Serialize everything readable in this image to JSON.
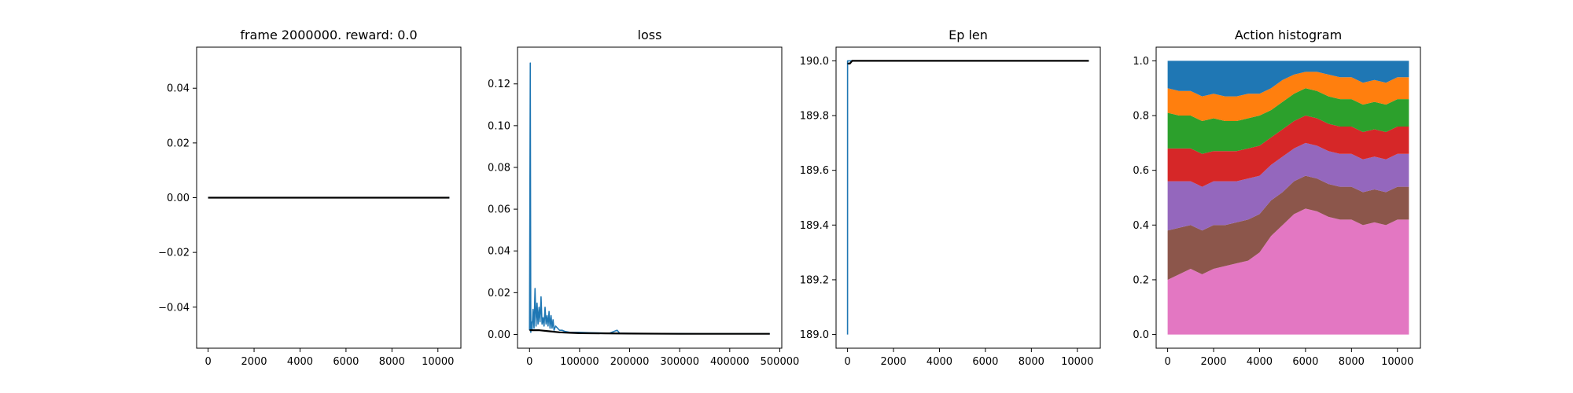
{
  "figure": {
    "background": "#ffffff"
  },
  "colors": {
    "blue": "#1f77b4",
    "orange": "#ff7f0e",
    "green": "#2ca02c",
    "red": "#d62728",
    "purple": "#9467bd",
    "brown": "#8c564b",
    "pink": "#e377c2",
    "black": "#000000"
  },
  "chart_data": [
    {
      "type": "line",
      "title": "frame 2000000. reward: 0.0",
      "xlim": [
        -500,
        11000
      ],
      "ylim": [
        -0.055,
        0.055
      ],
      "xticks": [
        0,
        2000,
        4000,
        6000,
        8000,
        10000
      ],
      "xtick_labels": [
        "0",
        "2000",
        "4000",
        "6000",
        "8000",
        "10000"
      ],
      "yticks": [
        -0.04,
        -0.02,
        0.0,
        0.02,
        0.04
      ],
      "ytick_labels": [
        "−0.04",
        "−0.02",
        "0.00",
        "0.02",
        "0.04"
      ],
      "series": [
        {
          "color": "#1f77b4",
          "x": [
            0,
            10500
          ],
          "y": [
            0,
            0
          ]
        },
        {
          "color": "#000000",
          "x": [
            0,
            10500
          ],
          "y": [
            0,
            0
          ]
        }
      ]
    },
    {
      "type": "line",
      "title": "loss",
      "xlim": [
        -24000,
        504000
      ],
      "ylim": [
        -0.0066,
        0.1376
      ],
      "xticks": [
        0,
        100000,
        200000,
        300000,
        400000,
        500000
      ],
      "xtick_labels": [
        "0",
        "100000",
        "200000",
        "300000",
        "400000",
        "500000"
      ],
      "yticks": [
        0.0,
        0.02,
        0.04,
        0.06,
        0.08,
        0.1,
        0.12
      ],
      "ytick_labels": [
        "0.00",
        "0.02",
        "0.04",
        "0.06",
        "0.08",
        "0.10",
        "0.12"
      ],
      "series": [
        {
          "color": "#1f77b4",
          "x": [
            0,
            1500,
            2500,
            3500,
            5000,
            7000,
            9000,
            11000,
            13000,
            15000,
            17000,
            19000,
            21000,
            23000,
            25000,
            27000,
            29000,
            31000,
            33000,
            35000,
            37000,
            39000,
            41000,
            43000,
            45000,
            47000,
            49000,
            52000,
            56000,
            60000,
            65000,
            70000,
            80000,
            90000,
            100000,
            120000,
            140000,
            160000,
            175000,
            180000,
            200000,
            250000,
            300000,
            350000,
            400000,
            450000,
            480000
          ],
          "y": [
            0.002,
            0.13,
            0.001,
            0.006,
            0.002,
            0.012,
            0.003,
            0.022,
            0.004,
            0.015,
            0.005,
            0.013,
            0.006,
            0.018,
            0.005,
            0.008,
            0.004,
            0.013,
            0.005,
            0.009,
            0.004,
            0.011,
            0.003,
            0.009,
            0.003,
            0.007,
            0.002,
            0.004,
            0.003,
            0.002,
            0.002,
            0.0015,
            0.001,
            0.001,
            0.001,
            0.0008,
            0.0007,
            0.0006,
            0.002,
            0.0006,
            0.0005,
            0.0004,
            0.0004,
            0.0003,
            0.0003,
            0.0003,
            0.0003
          ]
        },
        {
          "color": "#000000",
          "x": [
            0,
            20000,
            40000,
            60000,
            80000,
            100000,
            150000,
            200000,
            300000,
            400000,
            480000
          ],
          "y": [
            0.002,
            0.002,
            0.0015,
            0.001,
            0.0008,
            0.0006,
            0.0005,
            0.0004,
            0.0003,
            0.0003,
            0.0003
          ]
        }
      ]
    },
    {
      "type": "line",
      "title": "Ep len",
      "xlim": [
        -500,
        11000
      ],
      "ylim": [
        188.95,
        190.05
      ],
      "xticks": [
        0,
        2000,
        4000,
        6000,
        8000,
        10000
      ],
      "xtick_labels": [
        "0",
        "2000",
        "4000",
        "6000",
        "8000",
        "10000"
      ],
      "yticks": [
        189.0,
        189.2,
        189.4,
        189.6,
        189.8,
        190.0
      ],
      "ytick_labels": [
        "189.0",
        "189.2",
        "189.4",
        "189.6",
        "189.8",
        "190.0"
      ],
      "series": [
        {
          "color": "#1f77b4",
          "x": [
            0,
            1,
            2,
            10500
          ],
          "y": [
            189.0,
            190.0,
            190.0,
            190.0
          ]
        },
        {
          "color": "#000000",
          "x": [
            0,
            100,
            200,
            10500
          ],
          "y": [
            189.99,
            189.99,
            190.0,
            190.0
          ]
        }
      ]
    },
    {
      "type": "area",
      "title": "Action histogram",
      "xlim": [
        -500,
        11000
      ],
      "ylim": [
        -0.05,
        1.05
      ],
      "xticks": [
        0,
        2000,
        4000,
        6000,
        8000,
        10000
      ],
      "xtick_labels": [
        "0",
        "2000",
        "4000",
        "6000",
        "8000",
        "10000"
      ],
      "yticks": [
        0.0,
        0.2,
        0.4,
        0.6,
        0.8,
        1.0
      ],
      "ytick_labels": [
        "0.0",
        "0.2",
        "0.4",
        "0.6",
        "0.8",
        "1.0"
      ],
      "x": [
        0,
        500,
        1000,
        1500,
        2000,
        2500,
        3000,
        3500,
        4000,
        4500,
        5000,
        5500,
        6000,
        6500,
        7000,
        7500,
        8000,
        8500,
        9000,
        9500,
        10000,
        10500
      ],
      "series": [
        {
          "color": "#e377c2",
          "values": [
            0.2,
            0.22,
            0.24,
            0.22,
            0.24,
            0.25,
            0.26,
            0.27,
            0.3,
            0.36,
            0.4,
            0.44,
            0.46,
            0.45,
            0.43,
            0.42,
            0.42,
            0.4,
            0.41,
            0.4,
            0.42,
            0.42
          ]
        },
        {
          "color": "#8c564b",
          "values": [
            0.18,
            0.17,
            0.16,
            0.16,
            0.16,
            0.15,
            0.15,
            0.15,
            0.14,
            0.13,
            0.12,
            0.12,
            0.12,
            0.12,
            0.12,
            0.12,
            0.12,
            0.12,
            0.12,
            0.12,
            0.12,
            0.12
          ]
        },
        {
          "color": "#9467bd",
          "values": [
            0.18,
            0.17,
            0.16,
            0.16,
            0.16,
            0.16,
            0.15,
            0.15,
            0.14,
            0.13,
            0.13,
            0.12,
            0.12,
            0.12,
            0.12,
            0.12,
            0.12,
            0.12,
            0.12,
            0.12,
            0.12,
            0.12
          ]
        },
        {
          "color": "#d62728",
          "values": [
            0.12,
            0.12,
            0.12,
            0.12,
            0.11,
            0.11,
            0.11,
            0.11,
            0.11,
            0.1,
            0.1,
            0.1,
            0.1,
            0.1,
            0.1,
            0.1,
            0.1,
            0.1,
            0.1,
            0.1,
            0.1,
            0.1
          ]
        },
        {
          "color": "#2ca02c",
          "values": [
            0.13,
            0.12,
            0.12,
            0.12,
            0.12,
            0.11,
            0.11,
            0.11,
            0.11,
            0.1,
            0.1,
            0.1,
            0.1,
            0.1,
            0.1,
            0.1,
            0.1,
            0.1,
            0.1,
            0.1,
            0.1,
            0.1
          ]
        },
        {
          "color": "#ff7f0e",
          "values": [
            0.09,
            0.09,
            0.09,
            0.09,
            0.09,
            0.09,
            0.09,
            0.09,
            0.08,
            0.08,
            0.08,
            0.07,
            0.06,
            0.07,
            0.08,
            0.08,
            0.08,
            0.08,
            0.08,
            0.08,
            0.08,
            0.08
          ]
        },
        {
          "color": "#1f77b4",
          "values": [
            0.1,
            0.11,
            0.11,
            0.13,
            0.12,
            0.13,
            0.13,
            0.12,
            0.12,
            0.1,
            0.07,
            0.05,
            0.04,
            0.04,
            0.05,
            0.06,
            0.06,
            0.08,
            0.07,
            0.08,
            0.06,
            0.06
          ]
        }
      ]
    }
  ]
}
